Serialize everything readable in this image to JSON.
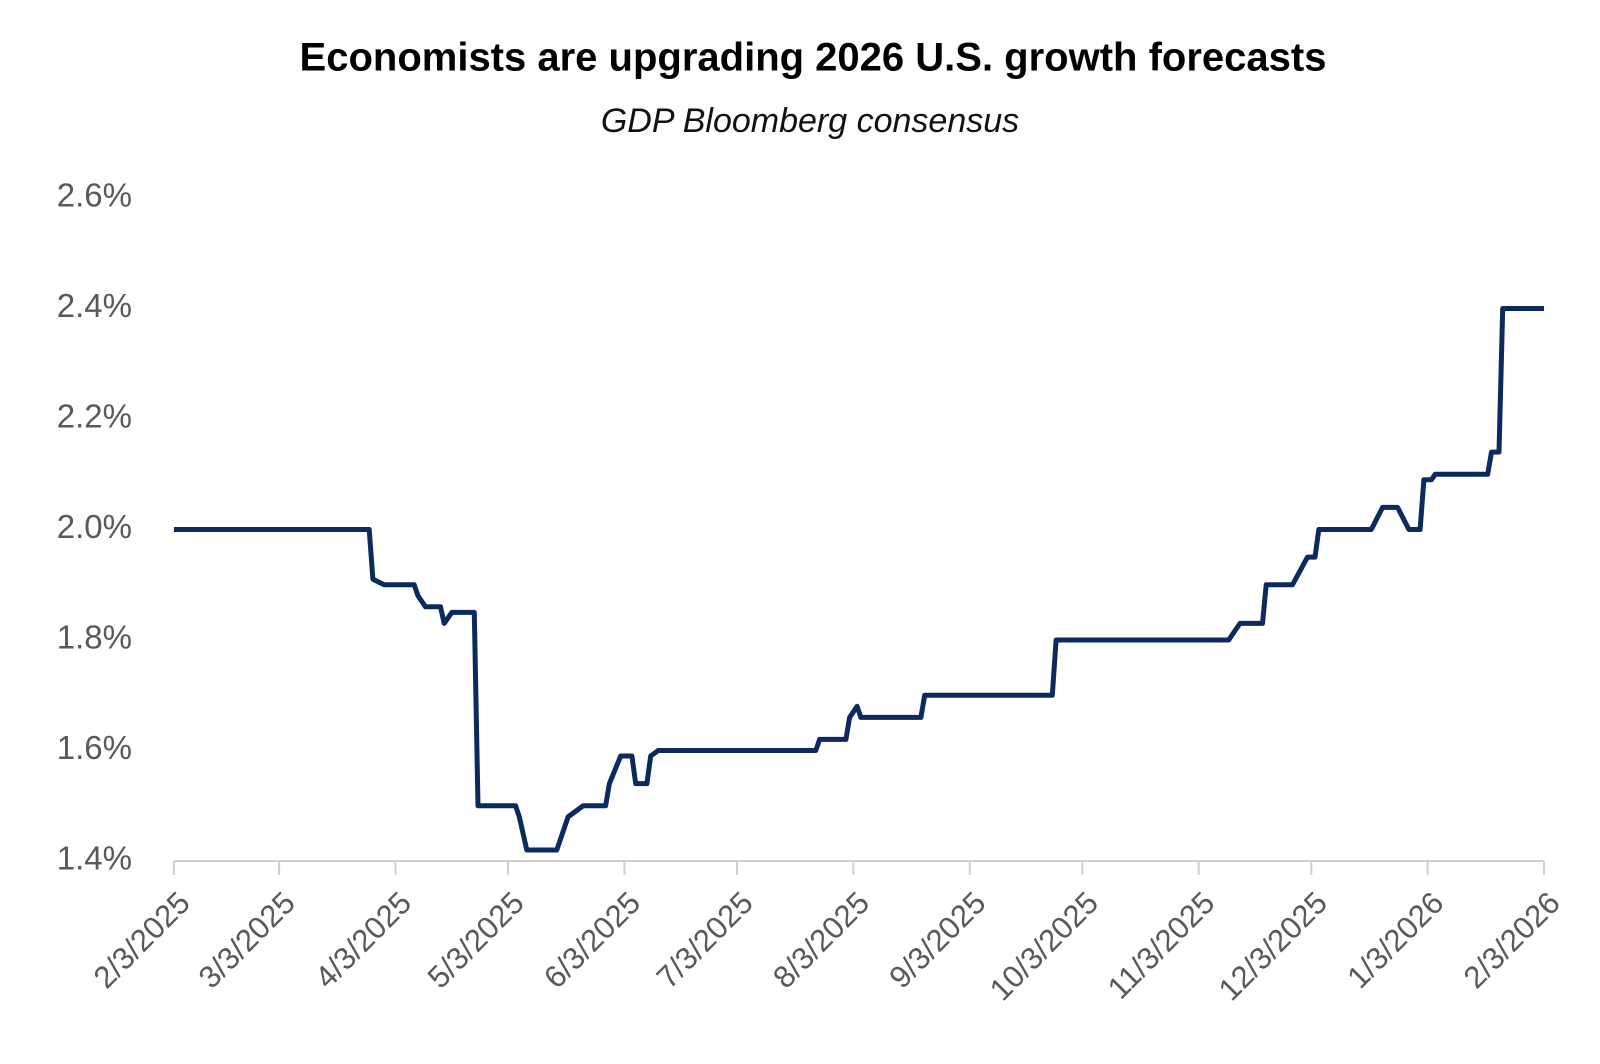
{
  "chart_data": {
    "type": "line",
    "title": "Economists are upgrading 2026 U.S. growth forecasts",
    "subtitle": "GDP Bloomberg consensus",
    "x": [
      "2/3/2025",
      "3/27/2025",
      "3/28/2025",
      "3/31/2025",
      "4/8/2025",
      "4/9/2025",
      "4/11/2025",
      "4/15/2025",
      "4/16/2025",
      "4/18/2025",
      "4/24/2025",
      "4/25/2025",
      "5/5/2025",
      "5/6/2025",
      "5/8/2025",
      "5/16/2025",
      "5/19/2025",
      "5/21/2025",
      "5/23/2025",
      "5/29/2025",
      "5/30/2025",
      "6/2/2025",
      "6/5/2025",
      "6/6/2025",
      "6/9/2025",
      "6/10/2025",
      "6/12/2025",
      "7/24/2025",
      "7/25/2025",
      "8/1/2025",
      "8/2/2025",
      "8/4/2025",
      "8/5/2025",
      "8/21/2025",
      "8/22/2025",
      "9/25/2025",
      "9/26/2025",
      "11/11/2025",
      "11/13/2025",
      "11/14/2025",
      "11/20/2025",
      "11/21/2025",
      "11/28/2025",
      "12/2/2025",
      "12/4/2025",
      "12/5/2025",
      "12/19/2025",
      "12/22/2025",
      "12/26/2025",
      "12/29/2025",
      "1/1/2026",
      "1/2/2026",
      "1/4/2026",
      "1/5/2026",
      "1/19/2026",
      "1/20/2026",
      "1/22/2026",
      "1/23/2026",
      "2/3/2026"
    ],
    "series": [
      {
        "color": "#0d2a5e",
        "values": [
          2.0,
          2.0,
          1.91,
          1.9,
          1.9,
          1.88,
          1.86,
          1.86,
          1.83,
          1.85,
          1.85,
          1.5,
          1.5,
          1.48,
          1.42,
          1.42,
          1.48,
          1.49,
          1.5,
          1.5,
          1.54,
          1.59,
          1.59,
          1.54,
          1.54,
          1.59,
          1.6,
          1.6,
          1.62,
          1.62,
          1.66,
          1.68,
          1.66,
          1.66,
          1.7,
          1.7,
          1.8,
          1.8,
          1.82,
          1.83,
          1.83,
          1.9,
          1.9,
          1.95,
          1.95,
          2.0,
          2.0,
          2.04,
          2.04,
          2.0,
          2.0,
          2.09,
          2.09,
          2.1,
          2.1,
          2.14,
          2.14,
          2.4,
          2.4
        ]
      }
    ],
    "xlim": [
      "2/3/2025",
      "2/3/2026"
    ],
    "xticks": [
      "2/3/2025",
      "3/3/2025",
      "4/3/2025",
      "5/3/2025",
      "6/3/2025",
      "7/3/2025",
      "8/3/2025",
      "9/3/2025",
      "10/3/2025",
      "11/3/2025",
      "12/3/2025",
      "1/3/2026",
      "2/3/2026"
    ],
    "ylim": [
      1.4,
      2.6
    ],
    "yticks": [
      {
        "value": 1.4,
        "label": "1.4%"
      },
      {
        "value": 1.6,
        "label": "1.6%"
      },
      {
        "value": 1.8,
        "label": "1.8%"
      },
      {
        "value": 2.0,
        "label": "2.0%"
      },
      {
        "value": 2.2,
        "label": "2.2%"
      },
      {
        "value": 2.4,
        "label": "2.4%"
      },
      {
        "value": 2.6,
        "label": "2.6%"
      }
    ],
    "grid": false
  }
}
